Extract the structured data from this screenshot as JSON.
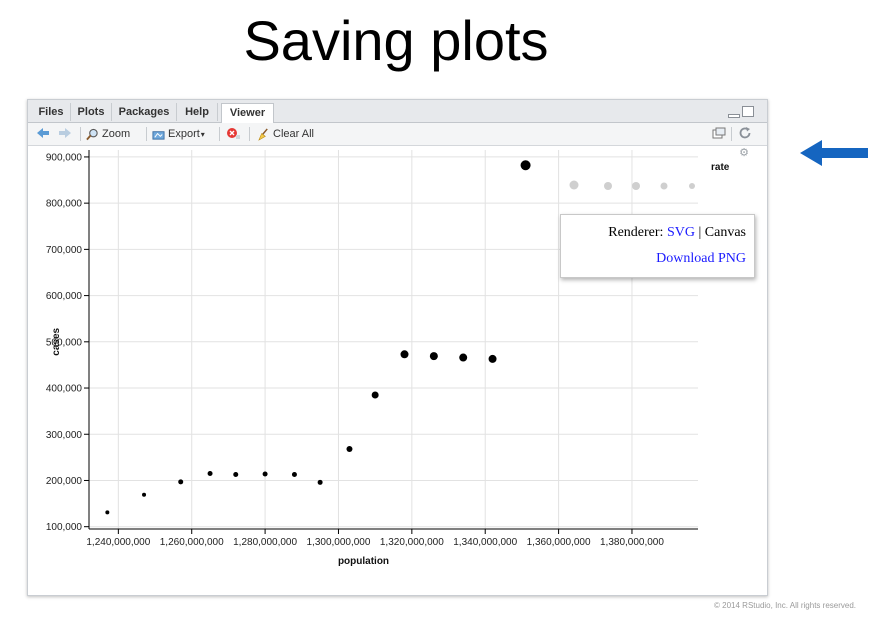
{
  "slide": {
    "title": "Saving plots",
    "copyright": "© 2014 RStudio, Inc. All rights reserved."
  },
  "tabs": [
    {
      "label": "Files"
    },
    {
      "label": "Plots"
    },
    {
      "label": "Packages"
    },
    {
      "label": "Help"
    },
    {
      "label": "Viewer"
    }
  ],
  "toolbar": {
    "zoom_label": "Zoom",
    "export_label": "Export",
    "clear_label": "Clear All"
  },
  "popup": {
    "renderer_label": "Renderer:",
    "svg_label": "SVG",
    "separator": "|",
    "canvas_label": "Canvas",
    "download_label": "Download PNG"
  },
  "colors": {
    "arrow": "#1565c0",
    "link": "#1a1aff"
  },
  "chart_data": {
    "type": "scatter",
    "xlabel": "population",
    "ylabel": "cases",
    "legend_title": "rate",
    "xlim": [
      1232000000,
      1398000000
    ],
    "ylim": [
      95000,
      915000
    ],
    "xticks": [
      1240000000,
      1260000000,
      1280000000,
      1300000000,
      1320000000,
      1340000000,
      1360000000,
      1380000000
    ],
    "xtick_labels": [
      "1,240,000,000",
      "1,260,000,000",
      "1,280,000,000",
      "1,300,000,000",
      "1,320,000,000",
      "1,340,000,000",
      "1,360,000,000",
      "1,380,000,000"
    ],
    "yticks": [
      100000,
      200000,
      300000,
      400000,
      500000,
      600000,
      700000,
      800000,
      900000
    ],
    "ytick_labels": [
      "100,000",
      "200,000",
      "300,000",
      "400,000",
      "500,000",
      "600,000",
      "700,000",
      "800,000",
      "900,000"
    ],
    "grid": true,
    "points": [
      {
        "x": 1237000000,
        "y": 131000,
        "size": 2
      },
      {
        "x": 1247000000,
        "y": 169000,
        "size": 2
      },
      {
        "x": 1257000000,
        "y": 197000,
        "size": 2.5
      },
      {
        "x": 1265000000,
        "y": 215000,
        "size": 2.5
      },
      {
        "x": 1272000000,
        "y": 213000,
        "size": 2.5
      },
      {
        "x": 1280000000,
        "y": 214000,
        "size": 2.5
      },
      {
        "x": 1288000000,
        "y": 213000,
        "size": 2.5
      },
      {
        "x": 1295000000,
        "y": 196000,
        "size": 2.5
      },
      {
        "x": 1303000000,
        "y": 268000,
        "size": 3
      },
      {
        "x": 1310000000,
        "y": 385000,
        "size": 3.5
      },
      {
        "x": 1318000000,
        "y": 473000,
        "size": 4
      },
      {
        "x": 1326000000,
        "y": 469000,
        "size": 4
      },
      {
        "x": 1334000000,
        "y": 466000,
        "size": 4
      },
      {
        "x": 1342000000,
        "y": 463000,
        "size": 4
      },
      {
        "x": 1351000000,
        "y": 882000,
        "size": 5
      }
    ]
  }
}
